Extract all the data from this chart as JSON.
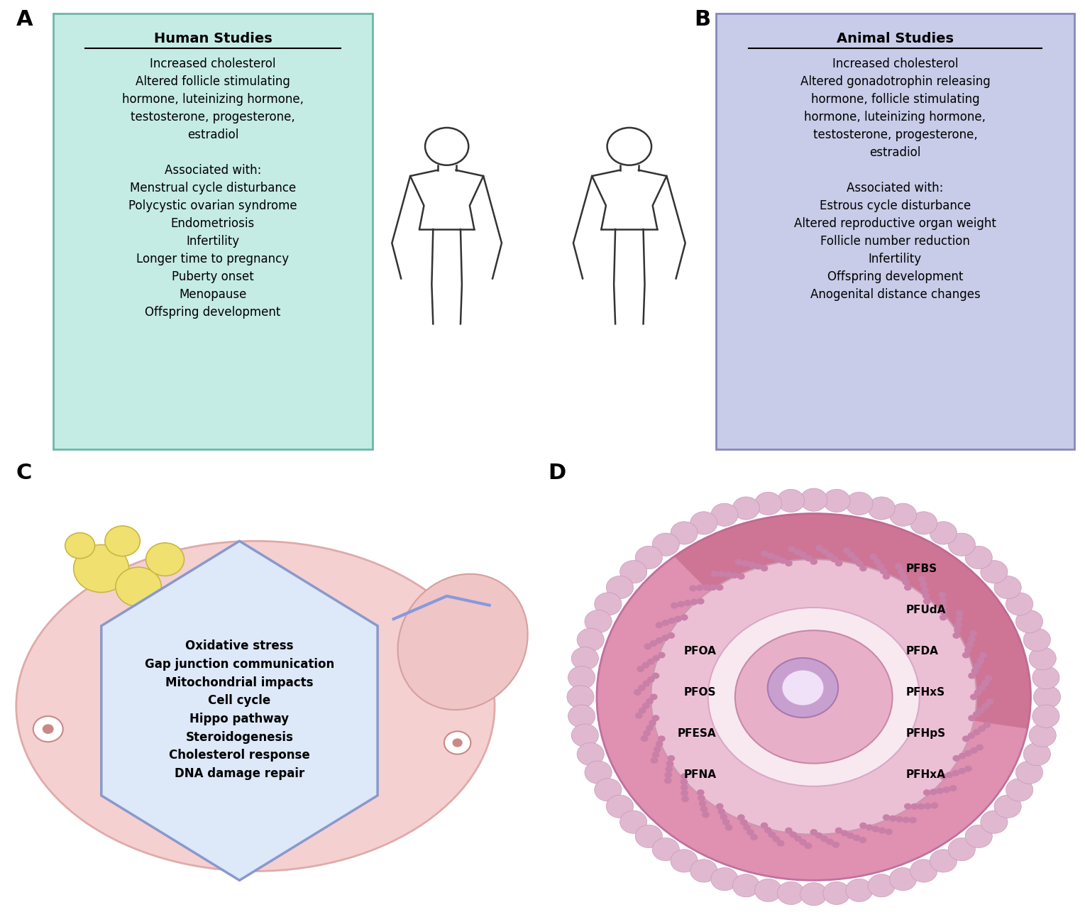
{
  "panel_A_title": "Human Studies",
  "panel_A_body": "Increased cholesterol\nAltered follicle stimulating\nhormone, luteinizing hormone,\ntestosterone, progesterone,\nestradiol\n\nAssociated with:\nMenstrual cycle disturbance\nPolycystic ovarian syndrome\nEndometriosis\nInfertility\nLonger time to pregnancy\nPuberty onset\nMenopause\nOffspring development",
  "panel_A_bg": "#c5ebe5",
  "panel_A_border": "#6ab8a8",
  "panel_B_title": "Animal Studies",
  "panel_B_body": "Increased cholesterol\nAltered gonadotrophin releasing\nhormone, follicle stimulating\nhormone, luteinizing hormone,\ntestosterone, progesterone,\nestradiol\n\nAssociated with:\nEstrous cycle disturbance\nAltered reproductive organ weight\nFollicle number reduction\nInfertility\nOffspring development\nAnogenital distance changes",
  "panel_B_bg": "#c8cce8",
  "panel_B_border": "#8888bb",
  "panel_C_hex_text": "Oxidative stress\nGap junction communication\nMitochondrial impacts\nCell cycle\nHippo pathway\nSteroidogenesis\nCholesterol response\nDNA damage repair",
  "panel_C_hex_bg": "#dde8f8",
  "panel_C_hex_border": "#8899cc",
  "panel_D_left_labels": [
    "PFOA",
    "PFOS",
    "PFESA",
    "PFNA"
  ],
  "panel_D_right_labels": [
    "PFBS",
    "PFUdA",
    "PFDA",
    "PFHxS",
    "PFHpS",
    "PFHxA"
  ],
  "bg_color": "#ffffff",
  "human_color": "#333333",
  "panel_label_fontsize": 22,
  "title_fontsize": 14,
  "body_fontsize": 12,
  "hex_fontsize": 12,
  "pfas_fontsize": 11
}
